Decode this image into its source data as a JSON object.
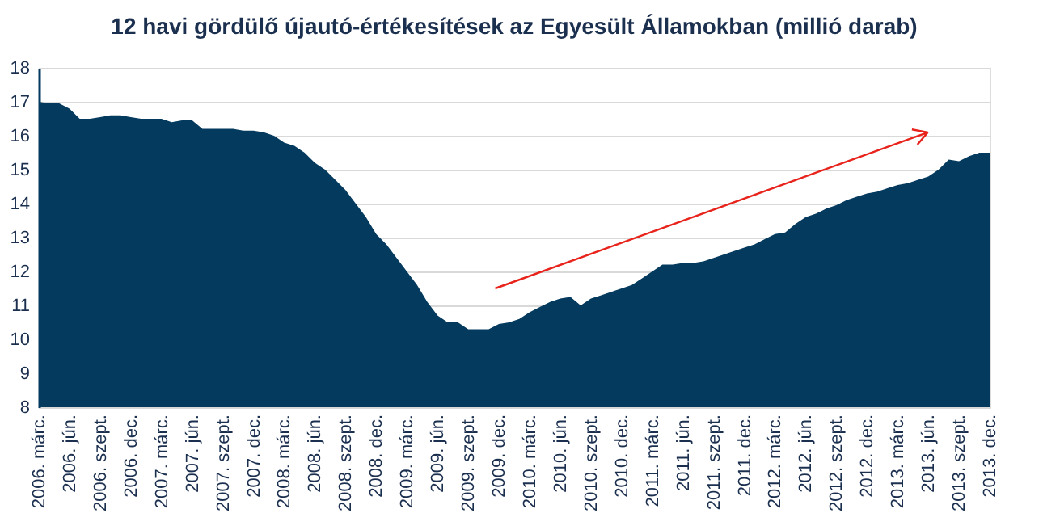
{
  "chart_data": {
    "type": "area",
    "title": "12 havi gördülő újautó-értékesítések  az Egyesült Államokban (millió darab)",
    "categories": [
      "2006. márc.",
      null,
      null,
      "2006. jún.",
      null,
      null,
      "2006. szept.",
      null,
      null,
      "2006. dec.",
      null,
      null,
      "2007. márc.",
      null,
      null,
      "2007. jún.",
      null,
      null,
      "2007. szept.",
      null,
      null,
      "2007. dec.",
      null,
      null,
      "2008. márc.",
      null,
      null,
      "2008. jún.",
      null,
      null,
      "2008. szept.",
      null,
      null,
      "2008. dec.",
      null,
      null,
      "2009. márc.",
      null,
      null,
      "2009. jún.",
      null,
      null,
      "2009. szept.",
      null,
      null,
      "2009. dec.",
      null,
      null,
      "2010. márc.",
      null,
      null,
      "2010. jún.",
      null,
      null,
      "2010. szept.",
      null,
      null,
      "2010. dec.",
      null,
      null,
      "2011. márc.",
      null,
      null,
      "2011. jún.",
      null,
      null,
      "2011. szept.",
      null,
      null,
      "2011. dec.",
      null,
      null,
      "2012. márc.",
      null,
      null,
      "2012. jún.",
      null,
      null,
      "2012. szept.",
      null,
      null,
      "2012. dec.",
      null,
      null,
      "2013. márc.",
      null,
      null,
      "2013. jún.",
      null,
      null,
      "2013. szept.",
      null,
      null,
      "2013. dec."
    ],
    "series": [
      {
        "color": "#033a5e",
        "values": [
          17.0,
          16.95,
          16.95,
          16.8,
          16.5,
          16.5,
          16.55,
          16.6,
          16.6,
          16.55,
          16.5,
          16.5,
          16.5,
          16.4,
          16.45,
          16.45,
          16.2,
          16.2,
          16.2,
          16.2,
          16.15,
          16.15,
          16.1,
          16.0,
          15.8,
          15.7,
          15.5,
          15.2,
          15.0,
          14.7,
          14.4,
          14.0,
          13.6,
          13.1,
          12.8,
          12.4,
          12.0,
          11.6,
          11.1,
          10.7,
          10.5,
          10.5,
          10.3,
          10.3,
          10.3,
          10.45,
          10.5,
          10.6,
          10.8,
          10.95,
          11.1,
          11.2,
          11.25,
          11.0,
          11.2,
          11.3,
          11.4,
          11.5,
          11.6,
          11.8,
          12.0,
          12.2,
          12.2,
          12.25,
          12.25,
          12.3,
          12.4,
          12.5,
          12.6,
          12.7,
          12.8,
          12.95,
          13.1,
          13.15,
          13.4,
          13.6,
          13.7,
          13.85,
          13.95,
          14.1,
          14.2,
          14.3,
          14.35,
          14.45,
          14.55,
          14.6,
          14.7,
          14.8,
          15.0,
          15.3,
          15.25,
          15.4,
          15.5,
          15.5
        ]
      }
    ],
    "ylim": [
      8,
      18
    ],
    "yticks": [
      8,
      9,
      10,
      11,
      12,
      13,
      14,
      15,
      16,
      17,
      18
    ],
    "grid": "y"
  }
}
